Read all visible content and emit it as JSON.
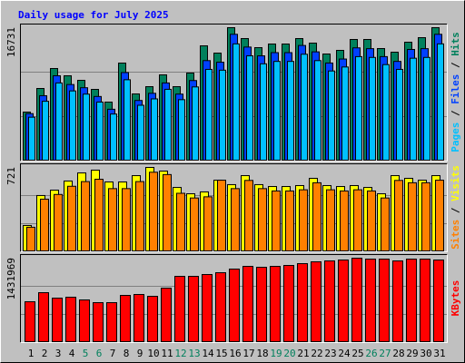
{
  "title": "Daily usage for July 2025",
  "chart_data": [
    {
      "type": "bar",
      "ylim": [
        0,
        16731
      ],
      "yticks": [
        16731
      ],
      "legend_separator": " / ",
      "series": [
        {
          "name": "Hits",
          "color": "#00805c",
          "values": [
            6146,
            9105,
            11609,
            10698,
            10129,
            8991,
            7398,
            12292,
            8422,
            9333,
            10812,
            9333,
            11040,
            14454,
            13544,
            16731,
            15365,
            14227,
            14682,
            14682,
            15365,
            14796,
            13430,
            13885,
            15251,
            15251,
            14113,
            13658,
            14910,
            15479,
            16731
          ]
        },
        {
          "name": "Files",
          "color": "#0040ff",
          "values": [
            5950,
            8200,
            10700,
            9600,
            9200,
            8100,
            6500,
            11100,
            7600,
            8500,
            9800,
            8400,
            10100,
            12600,
            12400,
            15900,
            14300,
            13200,
            13600,
            13600,
            14500,
            13700,
            12300,
            12800,
            14200,
            14100,
            13100,
            12500,
            14000,
            14100,
            15900
          ]
        },
        {
          "name": "Pages",
          "color": "#00c0ff",
          "values": [
            5500,
            7500,
            9800,
            8800,
            8400,
            7400,
            5900,
            10200,
            7000,
            7800,
            9000,
            7700,
            9300,
            11500,
            11400,
            14700,
            13200,
            12200,
            12500,
            12500,
            13400,
            12600,
            11300,
            11800,
            13100,
            13000,
            12100,
            11500,
            12900,
            13000,
            14700
          ]
        }
      ]
    },
    {
      "type": "bar",
      "ylim": [
        0,
        721
      ],
      "yticks": [
        721
      ],
      "legend_separator": " / ",
      "series": [
        {
          "name": "Visits",
          "color": "#ffff00",
          "values": [
            225,
            481,
            527,
            605,
            674,
            698,
            597,
            597,
            651,
            721,
            690,
            550,
            496,
            512,
            612,
            574,
            651,
            574,
            558,
            558,
            566,
            628,
            566,
            558,
            566,
            550,
            496,
            651,
            628,
            612,
            651
          ]
        },
        {
          "name": "Sites",
          "color": "#ff8000",
          "values": [
            210,
            450,
            490,
            560,
            600,
            620,
            540,
            540,
            600,
            680,
            660,
            500,
            460,
            470,
            612,
            540,
            610,
            540,
            520,
            520,
            530,
            590,
            530,
            520,
            530,
            520,
            460,
            610,
            590,
            590,
            612
          ]
        }
      ]
    },
    {
      "type": "bar",
      "ylim": [
        0,
        1431969
      ],
      "yticks": [
        1431969
      ],
      "categories": [
        "1",
        "2",
        "3",
        "4",
        "5",
        "6",
        "7",
        "8",
        "9",
        "10",
        "11",
        "12",
        "13",
        "14",
        "15",
        "16",
        "17",
        "18",
        "19",
        "20",
        "21",
        "22",
        "23",
        "24",
        "25",
        "26",
        "27",
        "28",
        "29",
        "30",
        "31"
      ],
      "category_colors": [
        "#000000",
        "#000000",
        "#000000",
        "#000000",
        "#00805c",
        "#00805c",
        "#000000",
        "#000000",
        "#000000",
        "#000000",
        "#000000",
        "#00805c",
        "#00805c",
        "#000000",
        "#000000",
        "#000000",
        "#000000",
        "#000000",
        "#00805c",
        "#00805c",
        "#000000",
        "#000000",
        "#000000",
        "#000000",
        "#000000",
        "#00805c",
        "#00805c",
        "#000000",
        "#000000",
        "#000000",
        "#000000"
      ],
      "series": [
        {
          "name": "KBytes",
          "color": "#ff0000",
          "values": [
            692900,
            846800,
            754400,
            769800,
            723600,
            677500,
            677500,
            800600,
            816000,
            785200,
            923800,
            1124000,
            1124000,
            1154800,
            1185500,
            1247200,
            1293300,
            1277900,
            1293300,
            1308700,
            1339500,
            1370300,
            1385700,
            1401100,
            1431969,
            1416500,
            1416500,
            1385700,
            1416500,
            1416500,
            1401100
          ]
        }
      ]
    }
  ]
}
